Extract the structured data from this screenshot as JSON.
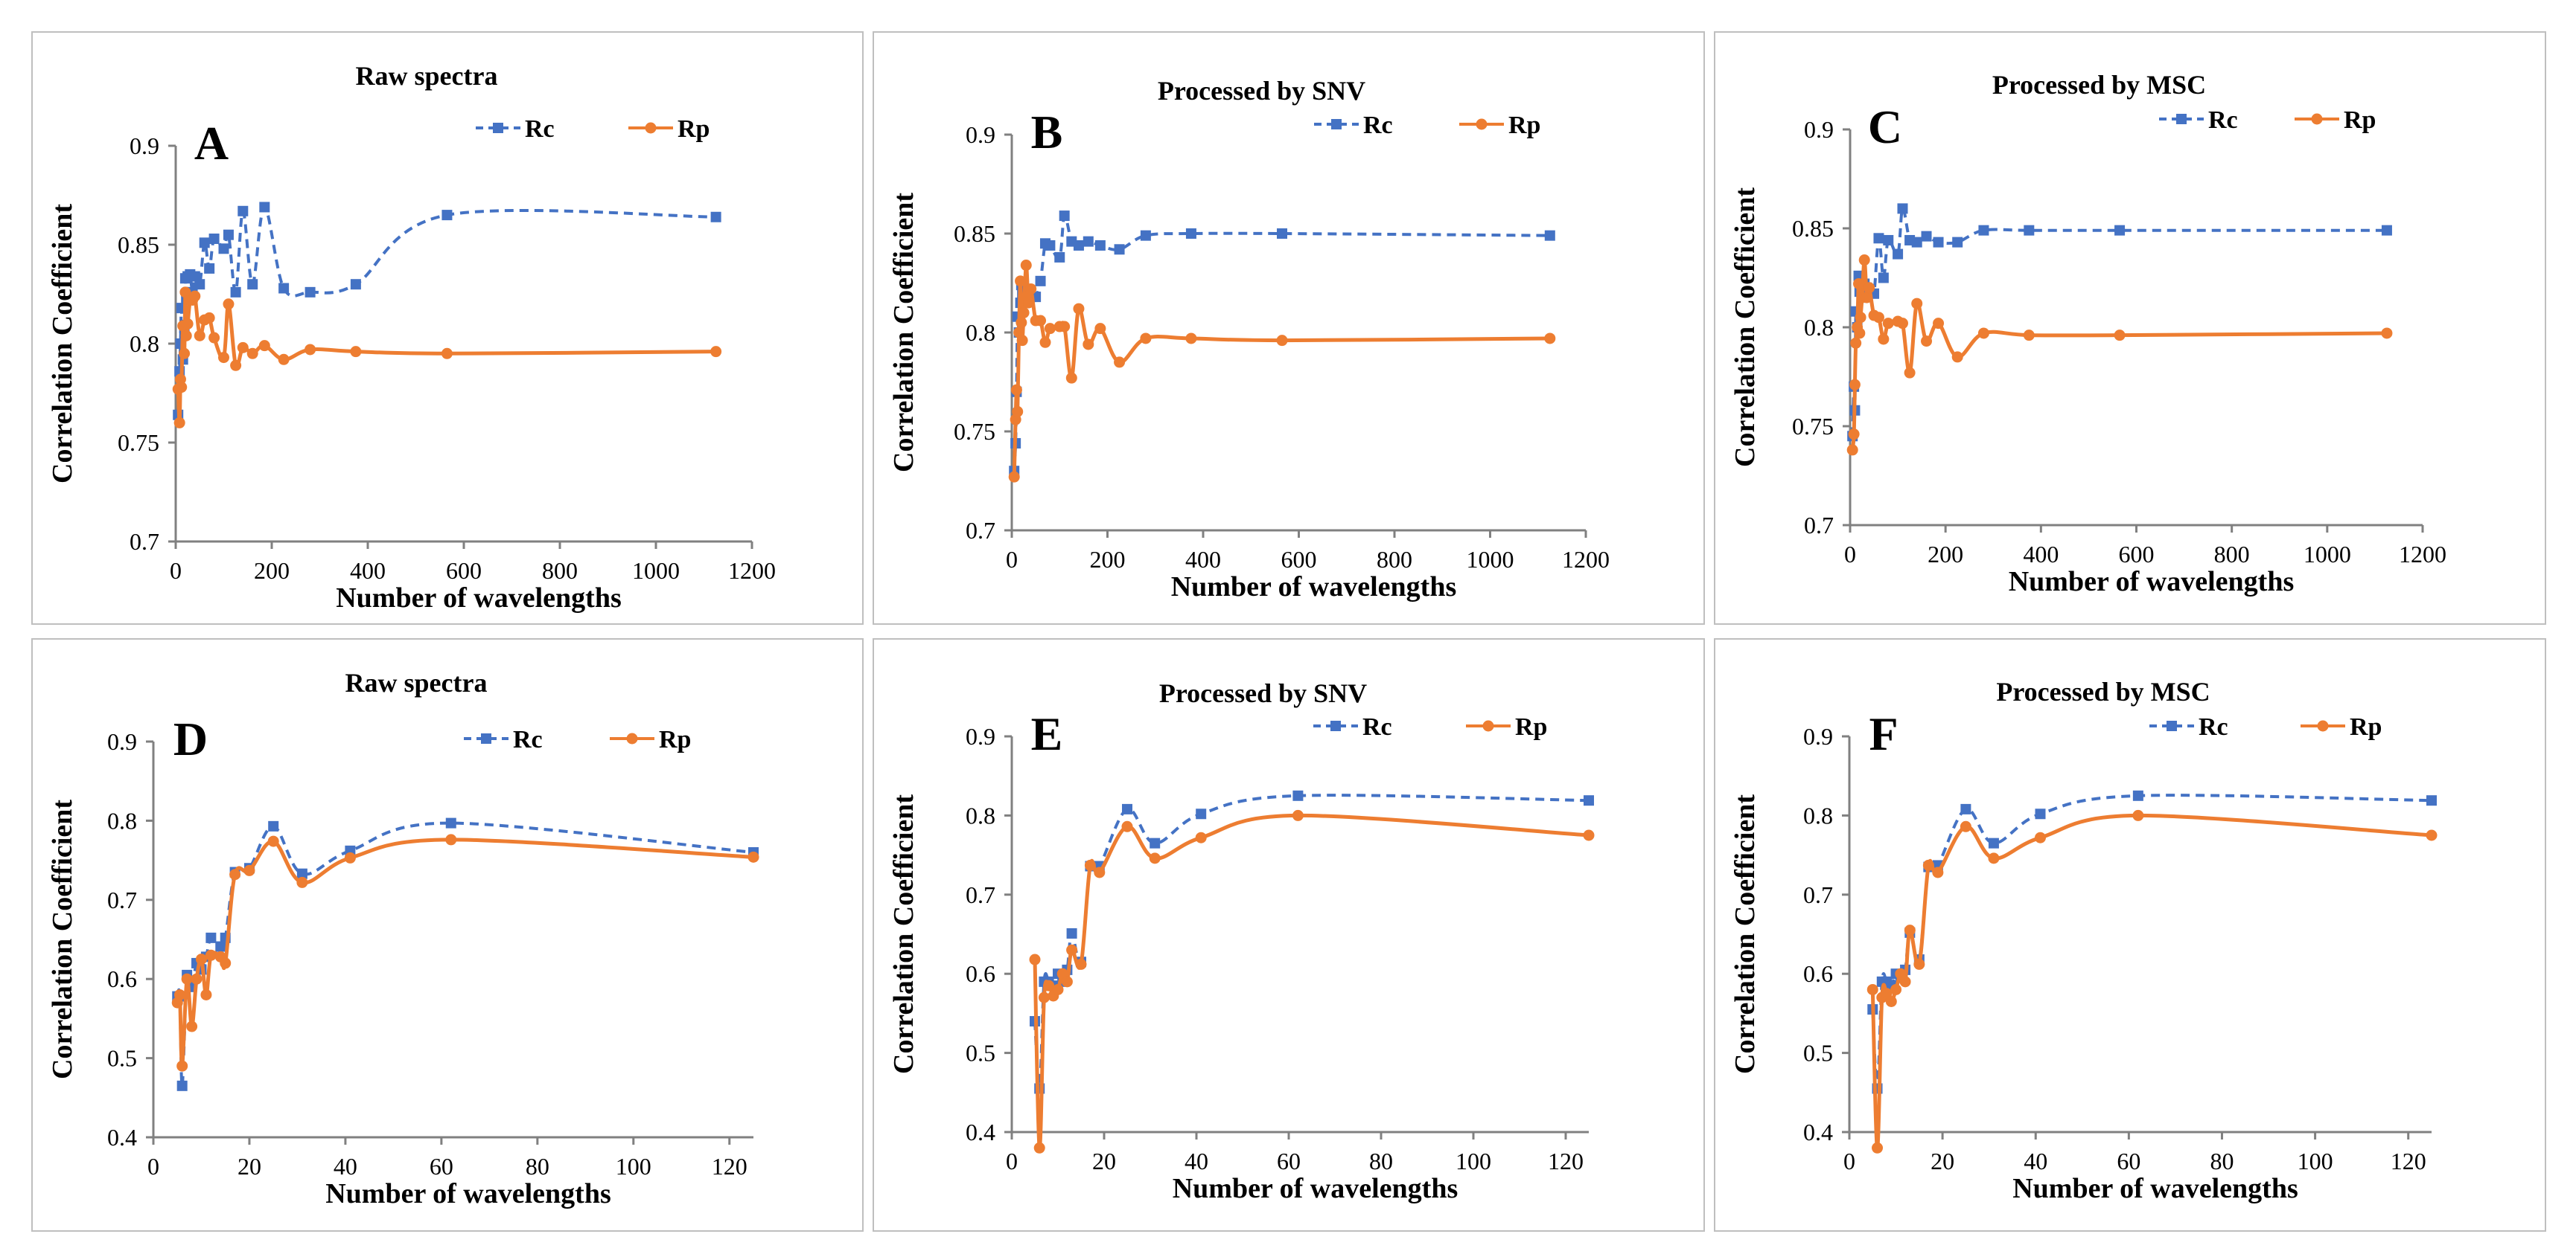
{
  "colors": {
    "rc": "#4472C4",
    "rp": "#ED7D31",
    "axis": "#808080",
    "frame": "#bfbfbf"
  },
  "chart_data": [
    {
      "type": "line",
      "panel": "A",
      "title": "Raw spectra",
      "xlabel": "Number of wavelengths",
      "ylabel": "Correlation Coefficient",
      "xlim": [
        0,
        1200
      ],
      "ylim": [
        0.7,
        0.9
      ],
      "xticks": [
        0,
        200,
        400,
        600,
        800,
        1000,
        1200
      ],
      "yticks": [
        0.7,
        0.75,
        0.8,
        0.85,
        0.9
      ],
      "xtick_labels": [
        "0",
        "200",
        "400",
        "600",
        "800",
        "1000",
        "1200"
      ],
      "ytick_labels": [
        "0.7",
        "0.75",
        "0.8",
        "0.85",
        "0.9"
      ],
      "series": [
        {
          "name": "Rc",
          "style": "dashed-square",
          "x": [
            5,
            8,
            10,
            12,
            15,
            18,
            20,
            22,
            25,
            30,
            35,
            40,
            50,
            60,
            70,
            80,
            100,
            110,
            125,
            140,
            160,
            185,
            225,
            280,
            375,
            565,
            1125
          ],
          "y": [
            0.764,
            0.786,
            0.8,
            0.818,
            0.792,
            0.808,
            0.833,
            0.822,
            0.834,
            0.835,
            0.826,
            0.834,
            0.83,
            0.851,
            0.838,
            0.853,
            0.848,
            0.855,
            0.826,
            0.867,
            0.83,
            0.869,
            0.828,
            0.826,
            0.83,
            0.865,
            0.864
          ]
        },
        {
          "name": "Rp",
          "style": "solid-circle",
          "x": [
            5,
            8,
            10,
            12,
            15,
            18,
            20,
            22,
            25,
            30,
            35,
            40,
            50,
            60,
            70,
            80,
            100,
            110,
            125,
            140,
            160,
            185,
            225,
            280,
            375,
            565,
            1125
          ],
          "y": [
            0.777,
            0.76,
            0.782,
            0.778,
            0.809,
            0.795,
            0.826,
            0.804,
            0.81,
            0.822,
            0.822,
            0.824,
            0.804,
            0.812,
            0.813,
            0.803,
            0.793,
            0.82,
            0.789,
            0.798,
            0.795,
            0.799,
            0.792,
            0.797,
            0.796,
            0.795,
            0.796
          ]
        }
      ]
    },
    {
      "type": "line",
      "panel": "B",
      "title": "Processed by SNV",
      "xlabel": "Number of wavelengths",
      "ylabel": "Correlation Coefficient",
      "xlim": [
        0,
        1200
      ],
      "ylim": [
        0.7,
        0.9
      ],
      "xticks": [
        0,
        200,
        400,
        600,
        800,
        1000,
        1200
      ],
      "yticks": [
        0.7,
        0.75,
        0.8,
        0.85,
        0.9
      ],
      "xtick_labels": [
        "0",
        "200",
        "400",
        "600",
        "800",
        "1000",
        "1200"
      ],
      "ytick_labels": [
        "0.7",
        "0.75",
        "0.8",
        "0.85",
        "0.9"
      ],
      "series": [
        {
          "name": "Rc",
          "style": "dashed-square",
          "x": [
            5,
            8,
            10,
            12,
            15,
            18,
            20,
            22,
            25,
            30,
            35,
            40,
            50,
            60,
            70,
            80,
            100,
            110,
            125,
            140,
            160,
            185,
            225,
            280,
            375,
            565,
            1125
          ],
          "y": [
            0.73,
            0.744,
            0.77,
            0.808,
            0.8,
            0.815,
            0.824,
            0.82,
            0.815,
            0.822,
            0.82,
            0.818,
            0.818,
            0.826,
            0.845,
            0.844,
            0.838,
            0.859,
            0.846,
            0.844,
            0.846,
            0.844,
            0.842,
            0.849,
            0.85,
            0.85,
            0.849
          ]
        },
        {
          "name": "Rp",
          "style": "solid-circle",
          "x": [
            5,
            8,
            10,
            12,
            15,
            18,
            20,
            22,
            25,
            30,
            35,
            40,
            50,
            60,
            70,
            80,
            100,
            110,
            125,
            140,
            160,
            185,
            225,
            280,
            375,
            565,
            1125
          ],
          "y": [
            0.727,
            0.756,
            0.771,
            0.76,
            0.8,
            0.826,
            0.805,
            0.796,
            0.81,
            0.834,
            0.815,
            0.822,
            0.806,
            0.806,
            0.795,
            0.802,
            0.803,
            0.803,
            0.777,
            0.812,
            0.794,
            0.802,
            0.785,
            0.797,
            0.797,
            0.796,
            0.797
          ]
        }
      ]
    },
    {
      "type": "line",
      "panel": "C",
      "title": "Processed by MSC",
      "xlabel": "Number of wavelengths",
      "ylabel": "Correlation Coefficient",
      "xlim": [
        0,
        1200
      ],
      "ylim": [
        0.7,
        0.9
      ],
      "xticks": [
        0,
        200,
        400,
        600,
        800,
        1000,
        1200
      ],
      "yticks": [
        0.7,
        0.75,
        0.8,
        0.85,
        0.9
      ],
      "xtick_labels": [
        "0",
        "200",
        "400",
        "600",
        "800",
        "1000",
        "1200"
      ],
      "ytick_labels": [
        "0.7",
        "0.75",
        "0.8",
        "0.85",
        "0.9"
      ],
      "series": [
        {
          "name": "Rc",
          "style": "dashed-square",
          "x": [
            5,
            8,
            10,
            12,
            15,
            18,
            20,
            22,
            25,
            30,
            35,
            40,
            50,
            60,
            70,
            80,
            100,
            110,
            125,
            140,
            160,
            185,
            225,
            280,
            375,
            565,
            1125
          ],
          "y": [
            0.745,
            0.77,
            0.758,
            0.808,
            0.8,
            0.826,
            0.818,
            0.82,
            0.815,
            0.822,
            0.82,
            0.818,
            0.817,
            0.845,
            0.825,
            0.844,
            0.837,
            0.86,
            0.844,
            0.843,
            0.846,
            0.843,
            0.843,
            0.849,
            0.849,
            0.849,
            0.849
          ]
        },
        {
          "name": "Rp",
          "style": "solid-circle",
          "x": [
            5,
            8,
            10,
            12,
            15,
            18,
            20,
            22,
            25,
            30,
            35,
            40,
            50,
            60,
            70,
            80,
            100,
            110,
            125,
            140,
            160,
            185,
            225,
            280,
            375,
            565,
            1125
          ],
          "y": [
            0.738,
            0.746,
            0.771,
            0.792,
            0.8,
            0.822,
            0.797,
            0.805,
            0.815,
            0.834,
            0.815,
            0.82,
            0.806,
            0.805,
            0.794,
            0.802,
            0.803,
            0.802,
            0.777,
            0.812,
            0.793,
            0.802,
            0.785,
            0.797,
            0.796,
            0.796,
            0.797
          ]
        }
      ]
    },
    {
      "type": "line",
      "panel": "D",
      "title": "Raw spectra",
      "xlabel": "Number of wavelengths",
      "ylabel": "Correlation Coefficient",
      "xlim": [
        0,
        125
      ],
      "ylim": [
        0.4,
        0.9
      ],
      "xticks": [
        0,
        20,
        40,
        60,
        80,
        100,
        120
      ],
      "yticks": [
        0.4,
        0.5,
        0.6,
        0.7,
        0.8,
        0.9
      ],
      "xtick_labels": [
        "0",
        "20",
        "40",
        "60",
        "80",
        "100",
        "120"
      ],
      "ytick_labels": [
        "0.4",
        "0.5",
        "0.6",
        "0.7",
        "0.8",
        "0.9"
      ],
      "series": [
        {
          "name": "Rc",
          "style": "dashed-square",
          "x": [
            5,
            5.5,
            6,
            7,
            8,
            9,
            10,
            11,
            12,
            14,
            15,
            17,
            20,
            25,
            31,
            41,
            62,
            125
          ],
          "y": [
            0.578,
            0.578,
            0.465,
            0.605,
            0.59,
            0.62,
            0.612,
            0.628,
            0.652,
            0.641,
            0.652,
            0.735,
            0.74,
            0.793,
            0.733,
            0.762,
            0.797,
            0.76
          ]
        },
        {
          "name": "Rp",
          "style": "solid-circle",
          "x": [
            5,
            5.5,
            6,
            7,
            8,
            9,
            10,
            11,
            12,
            14,
            15,
            17,
            20,
            25,
            31,
            41,
            62,
            125
          ],
          "y": [
            0.57,
            0.58,
            0.49,
            0.6,
            0.54,
            0.6,
            0.625,
            0.58,
            0.63,
            0.628,
            0.62,
            0.732,
            0.737,
            0.774,
            0.722,
            0.753,
            0.776,
            0.754
          ]
        }
      ]
    },
    {
      "type": "line",
      "panel": "E",
      "title": "Processed by SNV",
      "xlabel": "Number of wavelengths",
      "ylabel": "Correlation Coefficient",
      "xlim": [
        0,
        125
      ],
      "ylim": [
        0.4,
        0.9
      ],
      "xticks": [
        0,
        20,
        40,
        60,
        80,
        100,
        120
      ],
      "yticks": [
        0.4,
        0.5,
        0.6,
        0.7,
        0.8,
        0.9
      ],
      "xtick_labels": [
        "0",
        "20",
        "40",
        "60",
        "80",
        "100",
        "120"
      ],
      "ytick_labels": [
        "0.4",
        "0.5",
        "0.6",
        "0.7",
        "0.8",
        "0.9"
      ],
      "series": [
        {
          "name": "Rc",
          "style": "dashed-square",
          "x": [
            5,
            6,
            7,
            8,
            9,
            10,
            11,
            12,
            13,
            15,
            17,
            19,
            25,
            31,
            41,
            62,
            125
          ],
          "y": [
            0.54,
            0.455,
            0.59,
            0.59,
            0.585,
            0.6,
            0.59,
            0.605,
            0.651,
            0.615,
            0.736,
            0.736,
            0.808,
            0.765,
            0.802,
            0.825,
            0.819
          ]
        },
        {
          "name": "Rp",
          "style": "solid-circle",
          "x": [
            5,
            6,
            7,
            8,
            9,
            10,
            11,
            12,
            13,
            15,
            17,
            19,
            25,
            31,
            41,
            62,
            125
          ],
          "y": [
            0.618,
            0.38,
            0.57,
            0.585,
            0.572,
            0.58,
            0.6,
            0.59,
            0.63,
            0.612,
            0.737,
            0.728,
            0.786,
            0.746,
            0.772,
            0.8,
            0.775
          ]
        }
      ]
    },
    {
      "type": "line",
      "panel": "F",
      "title": "Processed by MSC",
      "xlabel": "Number of wavelengths",
      "ylabel": "Correlation Coefficient",
      "xlim": [
        0,
        125
      ],
      "ylim": [
        0.4,
        0.9
      ],
      "xticks": [
        0,
        20,
        40,
        60,
        80,
        100,
        120
      ],
      "yticks": [
        0.4,
        0.5,
        0.6,
        0.7,
        0.8,
        0.9
      ],
      "xtick_labels": [
        "0",
        "20",
        "40",
        "60",
        "80",
        "100",
        "120"
      ],
      "ytick_labels": [
        "0.4",
        "0.5",
        "0.6",
        "0.7",
        "0.8",
        "0.9"
      ],
      "series": [
        {
          "name": "Rc",
          "style": "dashed-square",
          "x": [
            5,
            6,
            7,
            8,
            9,
            10,
            11,
            12,
            13,
            15,
            17,
            19,
            25,
            31,
            41,
            62,
            125
          ],
          "y": [
            0.555,
            0.455,
            0.59,
            0.59,
            0.585,
            0.6,
            0.595,
            0.605,
            0.652,
            0.618,
            0.735,
            0.737,
            0.808,
            0.765,
            0.802,
            0.825,
            0.819
          ]
        },
        {
          "name": "Rp",
          "style": "solid-circle",
          "x": [
            5,
            6,
            7,
            8,
            9,
            10,
            11,
            12,
            13,
            15,
            17,
            19,
            25,
            31,
            41,
            62,
            125
          ],
          "y": [
            0.58,
            0.38,
            0.57,
            0.575,
            0.565,
            0.58,
            0.6,
            0.59,
            0.655,
            0.612,
            0.737,
            0.728,
            0.786,
            0.746,
            0.772,
            0.8,
            0.775
          ]
        }
      ]
    }
  ]
}
